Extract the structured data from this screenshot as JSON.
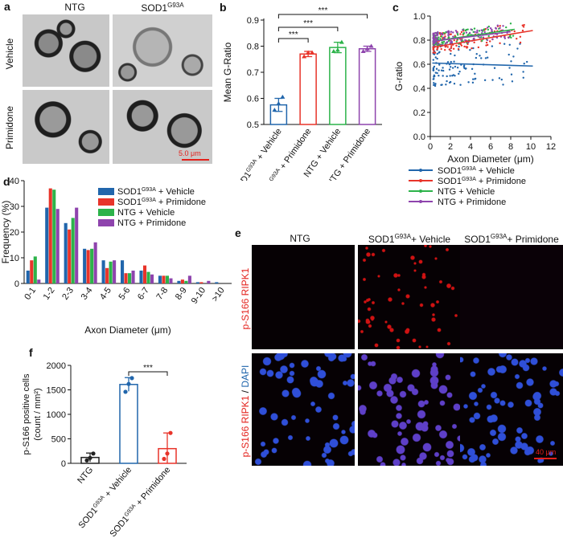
{
  "panels": {
    "a": {
      "letter": "a",
      "col_headers": [
        "NTG",
        "SOD1",
        "G93A"
      ],
      "row_labels": [
        "Vehicle",
        "Primidone"
      ],
      "scale_bar": "5.0 μm"
    },
    "e": {
      "letter": "e",
      "col_headers": [
        "NTG",
        "SOD1",
        "G93A",
        "+ Vehicle",
        "+ Primidone"
      ],
      "row1_label": "p-S166 RIPK1",
      "row2_label_red": "p-S166 RIPK1",
      "row2_label_sep": " / ",
      "row2_label_blue": "DAPI",
      "scale_bar": "40 μm"
    }
  },
  "chart_data": [
    {
      "panel": "b",
      "type": "bar",
      "ylabel": "Mean G-Ratio",
      "ylim": [
        0.5,
        0.9
      ],
      "yticks": [
        "0.5",
        "0.6",
        "0.7",
        "0.8",
        "0.9"
      ],
      "categories": [
        "SOD1G93A + Vehicle",
        "SOD1G93A + Primidone",
        "NTG + Vehicle",
        "NTG + Primidone"
      ],
      "category_parts": [
        [
          "SOD1",
          "G93A",
          " + Vehicle"
        ],
        [
          "SOD1",
          "G93A",
          " + Primidone"
        ],
        [
          "NTG + Vehicle",
          "",
          ""
        ],
        [
          "NTG + Primidone",
          "",
          ""
        ]
      ],
      "values": [
        0.575,
        0.77,
        0.795,
        0.79
      ],
      "errors": [
        0.025,
        0.01,
        0.02,
        0.01
      ],
      "points": [
        [
          0.555,
          0.58,
          0.605
        ],
        [
          0.76,
          0.775,
          0.775
        ],
        [
          0.78,
          0.785,
          0.815
        ],
        [
          0.78,
          0.79,
          0.8
        ]
      ],
      "colors": [
        "#2166ac",
        "#e8342a",
        "#2cb34a",
        "#8e44ad"
      ],
      "significance": [
        "***",
        "***",
        "***"
      ]
    },
    {
      "panel": "c",
      "type": "scatter",
      "xlabel": "Axon Diameter (μm)",
      "ylabel": "G-ratio",
      "xlim": [
        0,
        12
      ],
      "ylim": [
        0,
        1.0
      ],
      "xticks": [
        "0",
        "2",
        "4",
        "6",
        "8",
        "10",
        "12"
      ],
      "yticks": [
        "0.0",
        "0.2",
        "0.4",
        "0.6",
        "0.8",
        "1.0"
      ],
      "legend_parts": [
        [
          "SOD1",
          "G93A",
          " + Vehicle"
        ],
        [
          "SOD1",
          "G93A",
          " + Primidone"
        ],
        [
          "NTG + Vehicle",
          "",
          ""
        ],
        [
          "NTG + Primidone",
          "",
          ""
        ]
      ],
      "series": [
        {
          "name": "SOD1G93A + Vehicle",
          "color": "#2166ac",
          "fit": [
            [
              0.2,
              0.61
            ],
            [
              10.2,
              0.585
            ]
          ]
        },
        {
          "name": "SOD1G93A + Primidone",
          "color": "#e8342a",
          "fit": [
            [
              0.2,
              0.74
            ],
            [
              10.2,
              0.88
            ]
          ]
        },
        {
          "name": "NTG + Vehicle",
          "color": "#2cb34a",
          "fit": [
            [
              0.2,
              0.79
            ],
            [
              8.4,
              0.89
            ]
          ]
        },
        {
          "name": "NTG + Primidone",
          "color": "#8e44ad",
          "fit": [
            [
              0.2,
              0.79
            ],
            [
              8.0,
              0.87
            ]
          ]
        }
      ]
    },
    {
      "panel": "d",
      "type": "bar",
      "xlabel": "Axon Diameter (μm)",
      "ylabel": "Frequency (%)",
      "ylim": [
        0,
        40
      ],
      "yticks": [
        "0",
        "10",
        "20",
        "30",
        "40"
      ],
      "categories": [
        "0-1",
        "1-2",
        "2-3",
        "3-4",
        "4-5",
        "5-6",
        "6-7",
        "7-8",
        "8-9",
        "9-10",
        ">10"
      ],
      "legend_parts": [
        [
          "SOD1",
          "G93A",
          " + Vehicle"
        ],
        [
          "SOD1",
          "G93A",
          " + Primidone"
        ],
        [
          "NTG + Vehicle",
          "",
          ""
        ],
        [
          "NTG + Primidone",
          "",
          ""
        ]
      ],
      "series": [
        {
          "name": "SOD1G93A + Vehicle",
          "color": "#2166ac",
          "values": [
            5,
            29.5,
            23.5,
            13.5,
            9,
            9,
            5,
            3,
            1,
            0.5,
            0.5
          ]
        },
        {
          "name": "SOD1G93A + Primidone",
          "color": "#e8342a",
          "values": [
            9,
            37,
            21,
            13,
            6,
            4,
            7,
            3,
            1.5,
            0.5,
            0
          ]
        },
        {
          "name": "NTG + Vehicle",
          "color": "#2cb34a",
          "values": [
            10.5,
            36.5,
            25.5,
            13.5,
            8.5,
            4,
            4.5,
            3,
            1,
            0,
            0
          ]
        },
        {
          "name": "NTG + Primidone",
          "color": "#8e44ad",
          "values": [
            1.5,
            29,
            29.5,
            16,
            9,
            5,
            3.5,
            2,
            3,
            1,
            0
          ]
        }
      ]
    },
    {
      "panel": "f",
      "type": "bar",
      "ylabel_lines": [
        "p-S166 positive cells",
        "(count / mm²)"
      ],
      "ylim": [
        0,
        2000
      ],
      "yticks": [
        "0",
        "500",
        "1000",
        "1500",
        "2000"
      ],
      "categories": [
        "NTG",
        "SOD1G93A + Vehicle",
        "SOD1G93A + Primidone"
      ],
      "category_parts": [
        [
          "NTG",
          "",
          ""
        ],
        [
          "SOD1",
          "G93A",
          " + Vehicle"
        ],
        [
          "SOD1",
          "G93A",
          " + Primidone"
        ]
      ],
      "values": [
        120,
        1610,
        300
      ],
      "errors": [
        90,
        140,
        320
      ],
      "points": [
        [
          60,
          110,
          200
        ],
        [
          1460,
          1620,
          1740
        ],
        [
          90,
          200,
          620
        ]
      ],
      "colors": [
        "#222222",
        "#2166ac",
        "#e8342a"
      ],
      "significance": [
        "***"
      ]
    }
  ]
}
